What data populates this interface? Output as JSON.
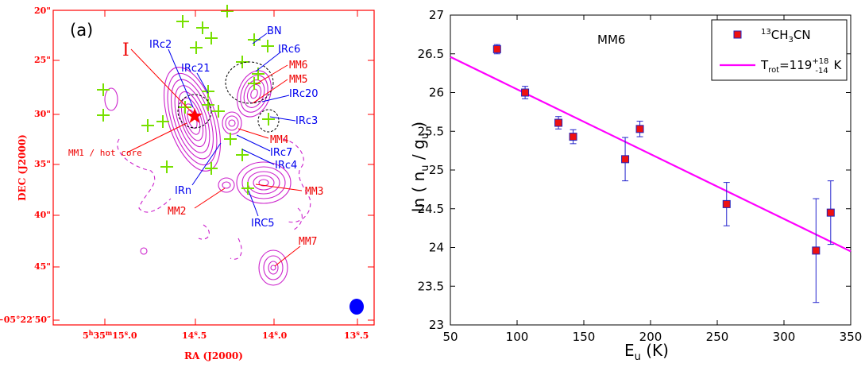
{
  "chart_data": [
    {
      "type": "contour-map",
      "panel_label": "(a)",
      "xlabel": "RA (J2000)",
      "ylabel": "DEC (J2000)",
      "x_ticks": [
        {
          "label": "5h35m15s.0",
          "major": "5",
          "sup1": "h",
          "mid": "35",
          "sup2": "m",
          "minor": "15",
          "sup3": "s",
          "frac": ".0"
        },
        {
          "label": "14s.5",
          "main": "14",
          "sup": "s",
          "frac": ".5"
        },
        {
          "label": "14s.0",
          "main": "14",
          "sup": "s",
          "frac": ".0"
        },
        {
          "label": "13s.5",
          "main": "13",
          "sup": "s",
          "frac": ".5"
        }
      ],
      "y_ticks": [
        {
          "label": "20\"",
          "text": "20\""
        },
        {
          "label": "25\"",
          "text": "25\""
        },
        {
          "label": "30\"",
          "text": "30\""
        },
        {
          "label": "35\"",
          "text": "35\""
        },
        {
          "label": "40\"",
          "text": "40\""
        },
        {
          "label": "45\"",
          "text": "45\""
        },
        {
          "label": "-05°22'50\"",
          "text": "−05°22′50″"
        }
      ],
      "red_labels": [
        "I",
        "MM1 / hot core",
        "MM2",
        "MM3",
        "MM4",
        "MM5",
        "MM6",
        "MM7"
      ],
      "blue_labels": [
        "BN",
        "IRc2",
        "IRc6",
        "IRc21",
        "IRc20",
        "IRc3",
        "IRc7",
        "IRc4",
        "IRn",
        "IRC5"
      ],
      "colors": {
        "axis": "#ff0000",
        "contour": "#cc22cc",
        "blue_label": "#0000ee",
        "red_label": "#ee0000",
        "cross": "#77e000",
        "beam": "#0000ff",
        "star": "#ff0000"
      }
    },
    {
      "type": "scatter",
      "title": "MM6",
      "xlabel": {
        "main": "E",
        "sub": "u",
        "unit": " (K)"
      },
      "ylabel": {
        "prefix": "ln ( n",
        "sub1": "u",
        "mid": " / g",
        "sub2": "u",
        "suffix": " )"
      },
      "xlim": [
        50,
        350
      ],
      "ylim": [
        23,
        27
      ],
      "x_ticks": [
        "50",
        "100",
        "150",
        "200",
        "250",
        "300",
        "350"
      ],
      "y_ticks": [
        "23",
        "23.5",
        "24",
        "24.5",
        "25",
        "25.5",
        "26",
        "26.5",
        "27"
      ],
      "series": [
        {
          "name": "13CH3CN",
          "points": [
            {
              "x": 85,
              "y": 26.56,
              "err": 0.06
            },
            {
              "x": 106,
              "y": 26.0,
              "err": 0.08
            },
            {
              "x": 131,
              "y": 25.61,
              "err": 0.08
            },
            {
              "x": 142,
              "y": 25.43,
              "err": 0.09
            },
            {
              "x": 181,
              "y": 25.14,
              "err": 0.28
            },
            {
              "x": 192,
              "y": 25.53,
              "err": 0.1
            },
            {
              "x": 257,
              "y": 24.56,
              "err": 0.28
            },
            {
              "x": 324,
              "y": 23.96,
              "err": 0.67
            },
            {
              "x": 335,
              "y": 24.45,
              "err": 0.41
            }
          ]
        }
      ],
      "fit_line": {
        "x": [
          50,
          350
        ],
        "y": [
          26.46,
          23.95
        ]
      },
      "legend": {
        "position": "top-right",
        "entry1": {
          "sup": "13",
          "a": "CH",
          "sub": "3",
          "b": "CN"
        },
        "entry2": {
          "a": "T",
          "sub": "rot",
          "b": "=119",
          "sup": "+18",
          "sub2": "-14",
          "c": " K"
        }
      },
      "colors": {
        "marker": "#ee1111",
        "marker_edge": "#2222bb",
        "error": "#2222cc",
        "fit": "#ff00ff",
        "axis": "#000000"
      }
    }
  ]
}
